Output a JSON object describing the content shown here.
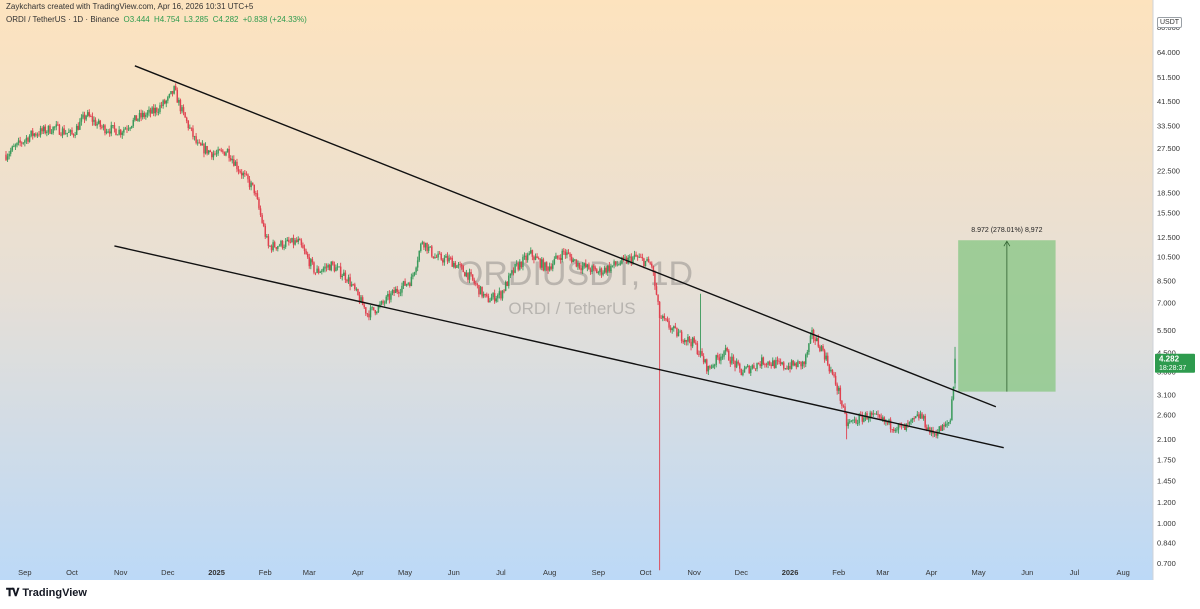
{
  "header": {
    "attribution": "Zaykcharts created with TradingView.com, Apr 16, 2026 10:31 UTC+5"
  },
  "symbol_line": {
    "name": "ORDI / TetherUS · 1D · Binance",
    "open": "O3.444",
    "high": "H4.754",
    "low": "L3.285",
    "close": "C4.282",
    "change": "+0.838 (+24.33%)"
  },
  "watermark": {
    "ticker": "ORDIUSDT, 1D",
    "description": "ORDI / TetherUS"
  },
  "currency_label": "USDT",
  "price_badge": {
    "price": "4.282",
    "countdown": "18:28:37"
  },
  "measure_label": "8.972 (278.01%) 8,972",
  "branding": "TradingView",
  "colors": {
    "bg_top": "#fde3be",
    "bg_bottom": "#bcd9f7",
    "up": "#3a9a5b",
    "down": "#e0414f",
    "trendline": "#111111",
    "target_box": "#90c98c",
    "badge": "#2e9b4e"
  },
  "chart_data": {
    "type": "candlestick",
    "symbol": "ORDIUSDT",
    "interval": "1D",
    "exchange": "Binance",
    "y_scale": "log",
    "ylim": [
      0.65,
      95
    ],
    "y_ticks": [
      "80.000",
      "64.000",
      "51.500",
      "41.500",
      "33.500",
      "27.500",
      "22.500",
      "18.500",
      "15.500",
      "12.500",
      "10.500",
      "8.500",
      "7.000",
      "5.500",
      "4.500",
      "3.800",
      "3.100",
      "2.600",
      "2.100",
      "1.750",
      "1.450",
      "1.200",
      "1.000",
      "0.840",
      "0.700"
    ],
    "x_ticks": [
      "Sep",
      "Oct",
      "Nov",
      "Dec",
      "2025",
      "Feb",
      "Mar",
      "Apr",
      "May",
      "Jun",
      "Jul",
      "Aug",
      "Sep",
      "Oct",
      "Nov",
      "Dec",
      "2026",
      "Feb",
      "Mar",
      "Apr",
      "May",
      "Jun",
      "Jul",
      "Aug"
    ],
    "x_range": [
      "2024-08-20",
      "2026-08-20"
    ],
    "price_path": [
      [
        "2024-08-20",
        26
      ],
      [
        "2024-09-05",
        31
      ],
      [
        "2024-09-20",
        33
      ],
      [
        "2024-10-01",
        31
      ],
      [
        "2024-10-10",
        37
      ],
      [
        "2024-10-20",
        33
      ],
      [
        "2024-11-01",
        32
      ],
      [
        "2024-11-12",
        36
      ],
      [
        "2024-11-22",
        38
      ],
      [
        "2024-12-01",
        42
      ],
      [
        "2024-12-05",
        46
      ],
      [
        "2024-12-10",
        38
      ],
      [
        "2024-12-20",
        28
      ],
      [
        "2025-01-01",
        26
      ],
      [
        "2025-01-08",
        27
      ],
      [
        "2025-01-15",
        23
      ],
      [
        "2025-01-25",
        19
      ],
      [
        "2025-02-03",
        11.5
      ],
      [
        "2025-02-12",
        11.8
      ],
      [
        "2025-02-22",
        12
      ],
      [
        "2025-03-05",
        9.2
      ],
      [
        "2025-03-15",
        9.8
      ],
      [
        "2025-03-25",
        8.8
      ],
      [
        "2025-04-07",
        6.4
      ],
      [
        "2025-04-15",
        6.8
      ],
      [
        "2025-04-25",
        7.8
      ],
      [
        "2025-05-05",
        8.6
      ],
      [
        "2025-05-12",
        12.2
      ],
      [
        "2025-05-20",
        10.5
      ],
      [
        "2025-05-30",
        10.2
      ],
      [
        "2025-06-10",
        9
      ],
      [
        "2025-06-22",
        7.2
      ],
      [
        "2025-07-01",
        7.6
      ],
      [
        "2025-07-10",
        9.5
      ],
      [
        "2025-07-20",
        10.8
      ],
      [
        "2025-07-30",
        9.5
      ],
      [
        "2025-08-10",
        11
      ],
      [
        "2025-08-20",
        9.8
      ],
      [
        "2025-09-01",
        9.2
      ],
      [
        "2025-09-15",
        10
      ],
      [
        "2025-09-25",
        10.5
      ],
      [
        "2025-10-05",
        9.8
      ],
      [
        "2025-10-10",
        6.2
      ],
      [
        "2025-10-20",
        5.4
      ],
      [
        "2025-11-01",
        4.9
      ],
      [
        "2025-11-10",
        3.9
      ],
      [
        "2025-11-20",
        4.6
      ],
      [
        "2025-12-01",
        3.8
      ],
      [
        "2025-12-15",
        4.2
      ],
      [
        "2025-12-28",
        4.0
      ],
      [
        "2026-01-10",
        4.1
      ],
      [
        "2026-01-15",
        5.3
      ],
      [
        "2026-01-22",
        4.6
      ],
      [
        "2026-02-01",
        3.2
      ],
      [
        "2026-02-06",
        2.4
      ],
      [
        "2026-02-20",
        2.6
      ],
      [
        "2026-03-05",
        2.4
      ],
      [
        "2026-03-15",
        2.3
      ],
      [
        "2026-03-25",
        2.6
      ],
      [
        "2026-04-01",
        2.2
      ],
      [
        "2026-04-10",
        2.35
      ],
      [
        "2026-04-13",
        2.5
      ],
      [
        "2026-04-14",
        3.0
      ],
      [
        "2026-04-15",
        3.444
      ],
      [
        "2026-04-16",
        4.282
      ]
    ],
    "last_candle": {
      "date": "2026-04-16",
      "open": 3.444,
      "high": 4.754,
      "low": 3.285,
      "close": 4.282
    },
    "wicks": [
      {
        "date": "2025-10-10",
        "low": 0.66
      },
      {
        "date": "2025-11-05",
        "high": 7.6
      },
      {
        "date": "2026-02-06",
        "low": 2.1
      }
    ],
    "trendlines": [
      {
        "name": "descending resistance",
        "points": [
          [
            "2024-11-10",
            57
          ],
          [
            "2026-05-12",
            2.8
          ]
        ]
      },
      {
        "name": "descending support",
        "points": [
          [
            "2024-10-28",
            11.6
          ],
          [
            "2026-05-17",
            1.95
          ]
        ]
      }
    ],
    "measure_box": {
      "from_date": "2026-04-18",
      "to_date": "2026-06-19",
      "low": 3.2,
      "high": 12.2
    }
  }
}
